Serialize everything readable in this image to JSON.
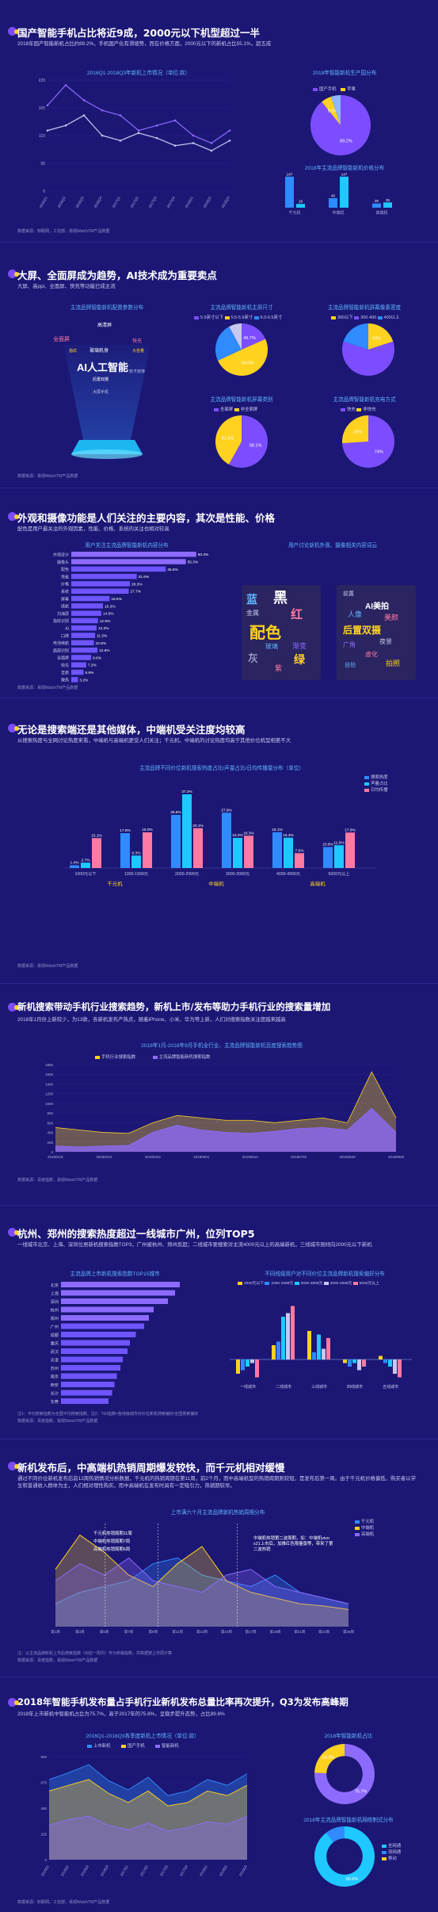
{
  "colors": {
    "bg": "#1c1774",
    "accent": "#7c4dff",
    "yellow": "#ffd21f",
    "blue": "#2f8bff",
    "cyan": "#1fc8ff",
    "pink": "#ff7aa2",
    "purple": "#8d6bff",
    "domestic": "#6f55ff",
    "apple": "#ffd21f",
    "other": "#8fb8ff"
  },
  "sections": {
    "s1": {
      "title": "国产智能手机占比将近9成，2000元以下机型超过一半",
      "desc": "2018年国产智能新机占比约89.2%，手机国产化有滑坡势，而在价格方面，2000元以下的新机占比55.1%，超五成",
      "chart1_title": "2016Q1-2018Q3年新机上市情况（单位:款）",
      "chart2_title": "2018年智能新机生产国分布",
      "chart2_legend": [
        "国产手机",
        "苹果",
        "三星"
      ],
      "chart3_title": "2018年主流品牌智能新机价格分布",
      "source": "数据来源：知赜网，工信部，易观WatchTM产品数据"
    },
    "s2": {
      "title": "大屏、全面屏成为趋势，AI技术成为重要卖点",
      "desc": "大屏、高ppi、全面屏、快充等功能已成主流",
      "tag_title": "主流品牌智能新机配置参数分布",
      "tags": [
        "AI人工智能",
        "全面屏",
        "玻璃机身",
        "快充",
        "高清屏",
        "大容量",
        "指纹",
        "后置双摄",
        "双卡双待",
        "大屏手机"
      ],
      "pie1_title": "主流品牌智能新机主屏尺寸",
      "pie1_legend": [
        "5.5英寸以下",
        "5.5-5.9英寸",
        "6.0-6.5英寸",
        "6.5英寸以上"
      ],
      "pie2_title": "主流品牌智能新机屏幕像素密度",
      "pie2_legend": [
        "300以下",
        "300-400",
        "400以上"
      ],
      "pie3_title": "主流品牌智能新机屏幕类别",
      "pie3_legend": [
        "全面屏",
        "非全面屏"
      ],
      "pie4_title": "主流品牌智能新机充电方式",
      "pie4_legend": [
        "快充",
        "非快充"
      ],
      "source": "数据来源：易观WatchTM产品数据"
    },
    "s3": {
      "title": "外观和摄像功能是人们关注的主要内容，其次是性能、价格",
      "desc": "配色是用户最关注的外观因素，性能、价格、系统的关注也相对较高",
      "chart1_title": "用户关注主流品牌智能新机内容分布",
      "chart2_title": "用户讨论新机外观、摄像相关内容词云",
      "words": [
        "黑",
        "红",
        "蓝",
        "配色",
        "金属",
        "灰",
        "渐变",
        "玻璃",
        "绿",
        "紫",
        "后置双摄",
        "AI美拍",
        "人像",
        "美颜",
        "夜景",
        "广角",
        "虚化",
        "前置",
        "拍照",
        "自拍",
        "光学",
        "变焦"
      ],
      "source": "数据来源：易观WatchTM产品数据"
    },
    "s4": {
      "title": "无论是搜索端还是其他媒体，中端机受关注度均较高",
      "desc": "从搜索热度与全网讨论热度来看，中端机与高端机更受人们关注；千元机、中端机的讨论热度均高于其他价位机型相差不大",
      "chart_title": "主流品牌不同价位新机搜索热度占比/声量占比/日均传播量分布（单位）",
      "legend": [
        "搜索热度",
        "声量占比",
        "日均传播"
      ],
      "groups": [
        "千元机",
        "中端机",
        "高端机"
      ],
      "source": "数据来源：易观WatchTM产品数据"
    },
    "s5": {
      "title": "新机搜索带动手机行业搜索趋势，新机上市/发布等助力手机行业的搜索量增加",
      "desc": "2018年1月份上新较少，为13款，各新机发布产热点，随着iPhone、小米、华为等上新，人们对搜索指数关注度越来越高",
      "chart_title": "2018年1月-2018年9月手机全行业、主流品牌智能新机百度搜索趋势图",
      "legend": [
        "手机行业搜索指数",
        "主流品牌智能新机搜索指数"
      ],
      "source": "数据来源：百度指数，易观WatchTM产品数据"
    },
    "s6": {
      "title": "杭州、郑州的搜索热度超过一线城市广州，位列TOP5",
      "desc": "一线城市北京、上海、深圳位居新机搜索指数TOP3，广州被杭州、郑州反超；二线城市要搜索对主流4000元以上的高端新机，三线城市则倾向2000元以下新机",
      "chart1_title": "主流品牌上市新机搜索指数TOP15城市",
      "chart2_title": "不同线级用户对不同价位主流品牌新机搜索偏好分布",
      "chart2_legend": [
        "2000元以下",
        "2000-2999元",
        "3000-3999元",
        "4000-4999元",
        "5000元以上"
      ],
      "chart2_groups": [
        "一线城市",
        "二线城市",
        "三线城市",
        "四线城市",
        "五线城市"
      ],
      "note": "注1：平均搜索指数为全国平均搜索指数。注2：TGI指数=各线级城市对价位新机搜索偏好/全国搜索偏好",
      "source": "数据来源：百度指数，易观WatchTM产品数据"
    },
    "s7": {
      "title": "新机发布后，中高端机热销周期爆发较快，而千元机相对缓慢",
      "desc": "通过不同价位新机发布后前12周热销情况分析数据，千元机的热销周期在第11周，前2个月，而中高端机型的热销周期则较短，是发布后第一周。由于千元机价格偏低，购买者以学生和普通收入群体为主，人们相对理性购买。而中高端机在发布时具有一定吸引力，热销期较早。",
      "chart_title": "上市满六个月主流品牌新机热销周期分布",
      "ann1": "千元机热销周期11周",
      "ann2": "中端机热销周期7周",
      "ann3": "高端机热销周期6周",
      "ann4": "中端机热销第二波周期，如：中端机vivo x21上市后，加推红色限量版等，带来了第二波热销",
      "legend": [
        "千元机",
        "中端机",
        "高端机"
      ],
      "x_labels": [
        "第1周",
        "第2周",
        "第3周",
        "第4周",
        "第5周",
        "第6周",
        "第7周",
        "第8周",
        "第9周",
        "第10周",
        "第11周",
        "第12周",
        "第13周",
        "第14周",
        "第15周",
        "第16周",
        "第17周",
        "第18周",
        "第19周",
        "第20周",
        "第21周",
        "第22周",
        "第23周",
        "第24周",
        "第25周",
        "第26周"
      ],
      "note": "注：以主流品牌新机上市后搜索指数（对应一周内）作为热销指数，并数据按上市周计算",
      "source": "数据来源：百度指数，易观WatchTM产品数据"
    },
    "s8": {
      "title": "2018年智能手机发布量占手机行业新机发布总量比率再次提升，Q3为发布高峰期",
      "desc": "2018年上市新机中智能机占比为75.7%，高于2017年的75.8%，呈稳步提升态势，占比89.6%",
      "chart1_title": "2016Q1-2018Q3各季度新机上市情况（单位:款）",
      "chart1_legend": [
        "上市新机",
        "国产手机",
        "智能新机"
      ],
      "chart2_title": "2018年智能新机占比",
      "chart3_title": "2018年主流品牌智能新机网络制式分布",
      "chart3_legend": [
        "全网通",
        "双网通",
        "移动"
      ],
      "source": "数据来源：知赜网，工信部，易观WatchTM产品数据"
    }
  },
  "chart_data": [
    {
      "id": "s1_line",
      "type": "line",
      "x": [
        "2016Q1",
        "2016Q2",
        "2016Q3",
        "2016Q4",
        "2017Q1",
        "2017Q2",
        "2017Q3",
        "2017Q4",
        "2018Q1",
        "2018Q2",
        "2018Q3"
      ],
      "series": [
        {
          "values": [
            170,
            210,
            180,
            160,
            150,
            120,
            130,
            140,
            110,
            95,
            120
          ]
        },
        {
          "values": [
            120,
            130,
            150,
            110,
            100,
            115,
            105,
            90,
            95,
            80,
            100
          ]
        }
      ],
      "ylim": [
        0,
        220
      ]
    },
    {
      "id": "s1_pie",
      "type": "pie",
      "labels": [
        "国产手机",
        "苹果",
        "三星"
      ],
      "values": [
        89.2,
        5.6,
        5.2
      ],
      "label_texts": [
        "89.2%",
        "5.6%"
      ]
    },
    {
      "id": "s1_bar",
      "type": "bar",
      "categories": [
        "千元机",
        "中端机",
        "高端机"
      ],
      "series": [
        {
          "values": [
            147,
            45,
            20
          ],
          "labels": [
            "147",
            "45",
            "20"
          ]
        },
        {
          "values": [
            18,
            147,
            25
          ],
          "labels": [
            "18",
            "147",
            "25"
          ]
        }
      ]
    },
    {
      "id": "s2_pie1",
      "type": "pie",
      "values": [
        18.4,
        49.7,
        24.0,
        7.9
      ],
      "label_texts": [
        "49.7%",
        "24.0%"
      ]
    },
    {
      "id": "s2_pie2",
      "type": "pie",
      "values": [
        20,
        60,
        20
      ],
      "label_texts": [
        "60%"
      ]
    },
    {
      "id": "s2_pie3",
      "type": "pie",
      "values": [
        58.1,
        41.9
      ],
      "label_texts": [
        "58.1%",
        "41.9%"
      ]
    },
    {
      "id": "s2_pie4",
      "type": "pie",
      "values": [
        74,
        26
      ],
      "label_texts": [
        "74%",
        "26%"
      ]
    },
    {
      "id": "s3_hbar",
      "type": "bar",
      "categories": [
        "外观设计",
        "摄像头",
        "配色",
        "性能",
        "价格",
        "系统",
        "屏幕",
        "续航",
        "刘海屏",
        "指纹识别",
        "AI",
        "口碑",
        "电池续航",
        "面部识别",
        "全面屏",
        "快充",
        "音质",
        "散热"
      ],
      "values": [
        60.3,
        55.3,
        45.6,
        31.6,
        28.3,
        27.7,
        18.5,
        15.3,
        14.5,
        12.9,
        12.2,
        11.5,
        10.9,
        12.6,
        9.6,
        7.2,
        5.9,
        3.2
      ],
      "labels": [
        "60.3%",
        "55.3%",
        "45.6%",
        "31.6%",
        "28.3%",
        "27.7%",
        "18.5%",
        "15.3%",
        "14.5%",
        "12.9%",
        "12.2%",
        "11.5%",
        "10.9%",
        "12.6%",
        "9.6%",
        "7.2%",
        "5.9%",
        "3.2%"
      ]
    },
    {
      "id": "s4_bar",
      "type": "bar",
      "categories": [
        "1000元以下",
        "1000-1999元",
        "2000-2999元",
        "3000-3999元",
        "4000-4999元",
        "5000元以上"
      ],
      "series": [
        {
          "name": "搜索热度",
          "values": [
            1.4,
            17.6,
            26.8,
            27.9,
            18.1,
            10.6
          ]
        },
        {
          "name": "声量占比",
          "values": [
            2.7,
            6.3,
            37.2,
            15.2,
            15.3,
            11.5
          ]
        },
        {
          "name": "日均传播",
          "values": [
            15.1,
            18.0,
            20.1,
            16.3,
            7.5,
            17.9
          ]
        }
      ],
      "labels": [
        [
          "1.4%",
          "17.6%",
          "26.8%",
          "27.9%",
          "18.1%",
          "10.6%"
        ],
        [
          "2.7%",
          "6.3%",
          "37.2%",
          "15.2%",
          "15.3%",
          "11.5%"
        ],
        [
          "15.1%",
          "18.0%",
          "20.1%",
          "16.3%",
          "7.5%",
          "17.9%"
        ]
      ],
      "ylim": [
        0,
        40
      ]
    },
    {
      "id": "s5_area",
      "type": "area",
      "x": [
        "20180101",
        "20180121",
        "20180210",
        "20180302",
        "20180322",
        "20180411",
        "20180501",
        "20180521",
        "20180610",
        "20180630",
        "20180720",
        "20180809",
        "20180829",
        "20180918",
        "20180928"
      ],
      "ylim": [
        0,
        1800
      ],
      "yticks": [
        0,
        200,
        400,
        600,
        800,
        1000,
        1200,
        1400,
        1600,
        1800
      ],
      "series": [
        {
          "name": "手机行业搜索指数",
          "values": [
            500,
            450,
            400,
            380,
            600,
            750,
            700,
            650,
            650,
            600,
            650,
            700,
            600,
            1650,
            700
          ]
        },
        {
          "name": "主流品牌智能新机搜索指数",
          "values": [
            120,
            100,
            120,
            130,
            400,
            550,
            450,
            400,
            380,
            420,
            480,
            500,
            450,
            900,
            400
          ]
        }
      ]
    },
    {
      "id": "s6_hbar",
      "type": "bar",
      "categories": [
        "北京",
        "上海",
        "深圳",
        "杭州",
        "郑州",
        "广州",
        "成都",
        "重庆",
        "武汉",
        "天津",
        "苏州",
        "南京",
        "西安",
        "长沙",
        "东莞"
      ],
      "values": [
        100,
        96,
        90,
        78,
        74,
        70,
        63,
        58,
        56,
        52,
        50,
        47,
        45,
        43,
        40
      ]
    },
    {
      "id": "s6_tgi",
      "type": "bar",
      "categories": [
        "一线城市",
        "二线城市",
        "三线城市",
        "四线城市",
        "五线城市"
      ],
      "series": [
        {
          "name": "2000元以下",
          "values": [
            -20,
            20,
            40,
            -5,
            5
          ]
        },
        {
          "name": "2000-2999元",
          "values": [
            -15,
            25,
            10,
            -10,
            -5
          ]
        },
        {
          "name": "3000-3999元",
          "values": [
            -10,
            60,
            35,
            -5,
            -10
          ]
        },
        {
          "name": "4000-4999元",
          "values": [
            -5,
            65,
            15,
            -15,
            -20
          ]
        },
        {
          "name": "5000元以上",
          "values": [
            -25,
            75,
            30,
            -10,
            -25
          ]
        }
      ]
    },
    {
      "id": "s7_area",
      "type": "area",
      "x": [
        "第1周",
        "第3周",
        "第5周",
        "第7周",
        "第9周",
        "第11周",
        "第13周",
        "第15周",
        "第17周",
        "第19周",
        "第21周",
        "第23周",
        "第25周"
      ],
      "series": [
        {
          "name": "千元机",
          "values": [
            20,
            30,
            35,
            40,
            55,
            60,
            45,
            40,
            35,
            45,
            30,
            25,
            20
          ]
        },
        {
          "name": "中端机",
          "values": [
            50,
            80,
            65,
            45,
            35,
            55,
            70,
            40,
            30,
            25,
            20,
            18,
            15
          ]
        },
        {
          "name": "高端机",
          "values": [
            40,
            55,
            45,
            60,
            40,
            35,
            30,
            45,
            50,
            35,
            30,
            25,
            20
          ]
        }
      ]
    },
    {
      "id": "s8_area",
      "type": "area",
      "x": [
        "2016Q1",
        "2016Q2",
        "2016Q3",
        "2016Q4",
        "2017Q1",
        "2017Q2",
        "2017Q3",
        "2017Q4",
        "2018Q1",
        "2018Q2",
        "2018Q3"
      ],
      "series": [
        {
          "name": "上市新机",
          "values": [
            700,
            760,
            830,
            690,
            610,
            720,
            560,
            600,
            700,
            650,
            750
          ]
        },
        {
          "name": "国产手机",
          "values": [
            600,
            650,
            700,
            580,
            500,
            600,
            470,
            500,
            600,
            560,
            650
          ]
        },
        {
          "name": "智能新机",
          "values": [
            300,
            350,
            380,
            300,
            260,
            320,
            250,
            280,
            330,
            310,
            380
          ]
        }
      ]
    },
    {
      "id": "s8_pie1",
      "type": "pie",
      "values": [
        75.7,
        24.3
      ],
      "label_texts": [
        "75.7%",
        "24.3%"
      ]
    },
    {
      "id": "s8_pie2",
      "type": "pie",
      "values": [
        89.6,
        10.4
      ],
      "label_texts": [
        "89.6%"
      ]
    }
  ]
}
